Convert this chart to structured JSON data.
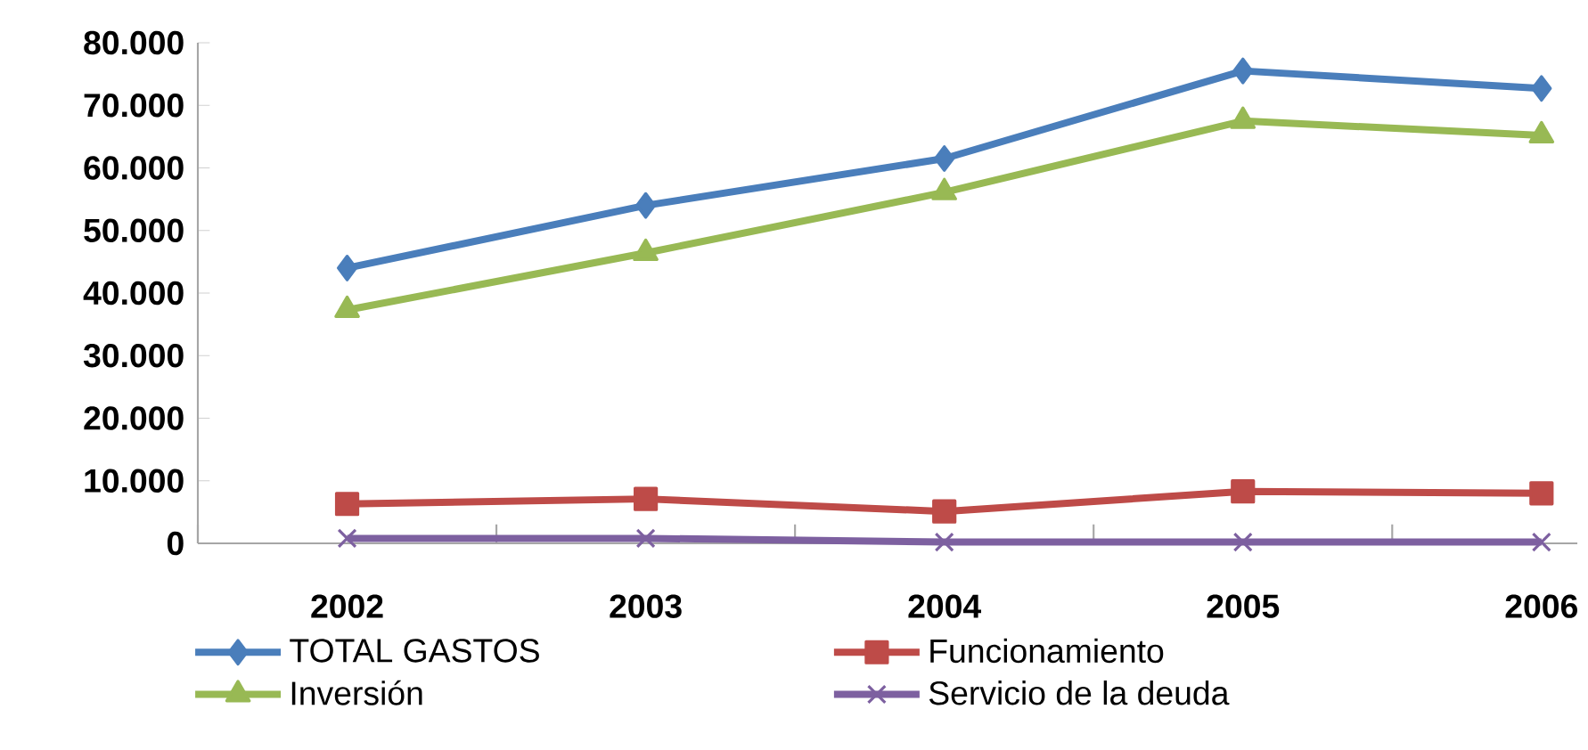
{
  "chart_data": {
    "type": "line",
    "categories": [
      "2002",
      "2003",
      "2004",
      "2005",
      "2006"
    ],
    "series": [
      {
        "name": "TOTAL GASTOS",
        "color": "#4a7ebb",
        "marker": "diamond",
        "values": [
          44000,
          54000,
          61500,
          75500,
          72700
        ]
      },
      {
        "name": "Funcionamiento",
        "color": "#be4b48",
        "marker": "square",
        "values": [
          6300,
          7100,
          5100,
          8300,
          8000
        ]
      },
      {
        "name": "Inversión",
        "color": "#98b954",
        "marker": "triangle",
        "values": [
          37300,
          46400,
          56100,
          67500,
          65200
        ]
      },
      {
        "name": "Servicio de la deuda",
        "color": "#7d60a0",
        "marker": "cross",
        "values": [
          800,
          800,
          200,
          200,
          200
        ]
      }
    ],
    "ylim": [
      0,
      80000
    ],
    "yticks": [
      {
        "value": 0,
        "label": "0"
      },
      {
        "value": 10000,
        "label": "10.000"
      },
      {
        "value": 20000,
        "label": "20.000"
      },
      {
        "value": 30000,
        "label": "30.000"
      },
      {
        "value": 40000,
        "label": "40.000"
      },
      {
        "value": 50000,
        "label": "50.000"
      },
      {
        "value": 60000,
        "label": "60.000"
      },
      {
        "value": 70000,
        "label": "70.000"
      },
      {
        "value": 80000,
        "label": "80.000"
      }
    ],
    "legend": "bottom",
    "grid": false,
    "line_style": "solid"
  }
}
